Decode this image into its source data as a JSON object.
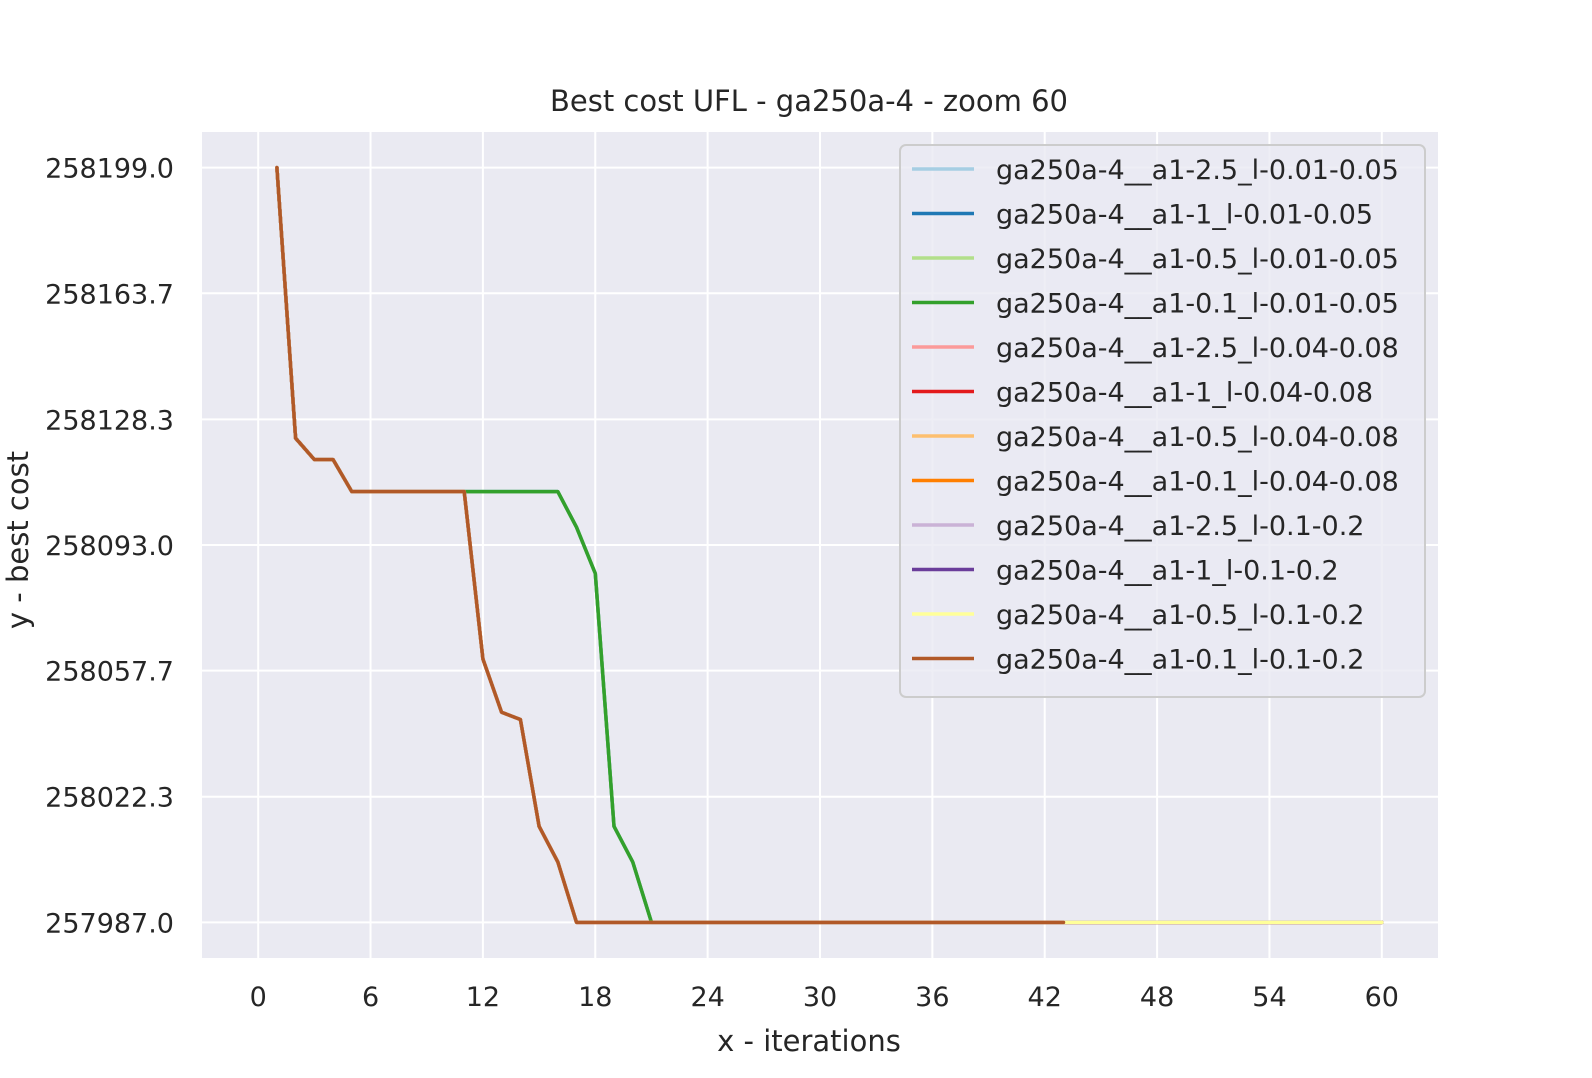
{
  "chart_data": {
    "type": "line",
    "title": "Best cost UFL - ga250a-4 - zoom 60",
    "xlabel": "x - iterations",
    "ylabel": "y - best cost",
    "xlim": [
      -3,
      63
    ],
    "ylim": [
      257977,
      258209
    ],
    "xticks": [
      0,
      6,
      12,
      18,
      24,
      30,
      36,
      42,
      48,
      54,
      60
    ],
    "xtick_labels": [
      "0",
      "6",
      "12",
      "18",
      "24",
      "30",
      "36",
      "42",
      "48",
      "54",
      "60"
    ],
    "yticks": [
      257987.0,
      258022.3,
      258057.7,
      258093.0,
      258128.3,
      258163.7,
      258199.0
    ],
    "ytick_labels": [
      "257987.0",
      "258022.3",
      "258057.7",
      "258093.0",
      "258128.3",
      "258163.7",
      "258199.0"
    ],
    "grid": true,
    "legend_position": "top-right",
    "colors": {
      "background": "#eaeaf2",
      "grid": "#ffffff"
    },
    "series": [
      {
        "name": "ga250a-4__a1-2.5_l-0.01-0.05",
        "color": "#a6cee3",
        "x": [
          1,
          2,
          3,
          4,
          5,
          11,
          16,
          17,
          18,
          19,
          20,
          21,
          60
        ],
        "y": [
          258199,
          258123,
          258117,
          258117,
          258108,
          258108,
          258108,
          258098,
          258085,
          258014,
          258004,
          257987,
          257987
        ]
      },
      {
        "name": "ga250a-4__a1-1_l-0.01-0.05",
        "color": "#1f78b4",
        "x": [
          1,
          2,
          3,
          4,
          5,
          11,
          16,
          17,
          18,
          19,
          20,
          21,
          60
        ],
        "y": [
          258199,
          258123,
          258117,
          258117,
          258108,
          258108,
          258108,
          258098,
          258085,
          258014,
          258004,
          257987,
          257987
        ]
      },
      {
        "name": "ga250a-4__a1-0.5_l-0.01-0.05",
        "color": "#b2df8a",
        "x": [
          1,
          2,
          3,
          4,
          5,
          11,
          16,
          17,
          18,
          19,
          20,
          21,
          60
        ],
        "y": [
          258199,
          258123,
          258117,
          258117,
          258108,
          258108,
          258108,
          258098,
          258085,
          258014,
          258004,
          257987,
          257987
        ]
      },
      {
        "name": "ga250a-4__a1-0.1_l-0.01-0.05",
        "color": "#33a02c",
        "x": [
          1,
          2,
          3,
          4,
          5,
          11,
          16,
          17,
          18,
          19,
          20,
          21,
          60
        ],
        "y": [
          258199,
          258123,
          258117,
          258117,
          258108,
          258108,
          258108,
          258098,
          258085,
          258014,
          258004,
          257987,
          257987
        ]
      },
      {
        "name": "ga250a-4__a1-2.5_l-0.04-0.08",
        "color": "#fb9a99",
        "x": [
          1,
          2,
          3,
          4,
          5,
          11,
          12,
          13,
          14,
          15,
          16,
          17,
          60
        ],
        "y": [
          258199,
          258123,
          258117,
          258117,
          258108,
          258108,
          258061,
          258046,
          258044,
          258014,
          258004,
          257987,
          257987
        ]
      },
      {
        "name": "ga250a-4__a1-1_l-0.04-0.08",
        "color": "#e31a1c",
        "x": [
          1,
          2,
          3,
          4,
          5,
          11,
          12,
          13,
          14,
          15,
          16,
          17,
          60
        ],
        "y": [
          258199,
          258123,
          258117,
          258117,
          258108,
          258108,
          258061,
          258046,
          258044,
          258014,
          258004,
          257987,
          257987
        ]
      },
      {
        "name": "ga250a-4__a1-0.5_l-0.04-0.08",
        "color": "#fdbf6f",
        "x": [
          1,
          2,
          3,
          4,
          5,
          11,
          12,
          13,
          14,
          15,
          16,
          17,
          60
        ],
        "y": [
          258199,
          258123,
          258117,
          258117,
          258108,
          258108,
          258061,
          258046,
          258044,
          258014,
          258004,
          257987,
          257987
        ]
      },
      {
        "name": "ga250a-4__a1-0.1_l-0.04-0.08",
        "color": "#ff7f00",
        "x": [
          1,
          2,
          3,
          4,
          5,
          11,
          12,
          13,
          14,
          15,
          16,
          17,
          60
        ],
        "y": [
          258199,
          258123,
          258117,
          258117,
          258108,
          258108,
          258061,
          258046,
          258044,
          258014,
          258004,
          257987,
          257987
        ]
      },
      {
        "name": "ga250a-4__a1-2.5_l-0.1-0.2",
        "color": "#cab2d6",
        "x": [
          1,
          2,
          3,
          4,
          5,
          11,
          12,
          13,
          14,
          15,
          16,
          17,
          60
        ],
        "y": [
          258199,
          258123,
          258117,
          258117,
          258108,
          258108,
          258061,
          258046,
          258044,
          258014,
          258004,
          257987,
          257987
        ]
      },
      {
        "name": "ga250a-4__a1-1_l-0.1-0.2",
        "color": "#6a3d9a",
        "x": [
          1,
          2,
          3,
          4,
          5,
          11,
          12,
          13,
          14,
          15,
          16,
          17,
          60
        ],
        "y": [
          258199,
          258123,
          258117,
          258117,
          258108,
          258108,
          258061,
          258046,
          258044,
          258014,
          258004,
          257987,
          257987
        ]
      },
      {
        "name": "ga250a-4__a1-0.5_l-0.1-0.2",
        "color": "#ffff99",
        "x": [
          1,
          2,
          3,
          4,
          5,
          11,
          12,
          13,
          14,
          15,
          16,
          17,
          60
        ],
        "y": [
          258199,
          258123,
          258117,
          258117,
          258108,
          258108,
          258061,
          258046,
          258044,
          258014,
          258004,
          257987,
          257987
        ]
      },
      {
        "name": "ga250a-4__a1-0.1_l-0.1-0.2",
        "color": "#b15928",
        "x": [
          1,
          2,
          3,
          4,
          5,
          11,
          12,
          13,
          14,
          15,
          16,
          17,
          43
        ],
        "y": [
          258199,
          258123,
          258117,
          258117,
          258108,
          258108,
          258061,
          258046,
          258044,
          258014,
          258004,
          257987,
          257987
        ]
      }
    ]
  }
}
